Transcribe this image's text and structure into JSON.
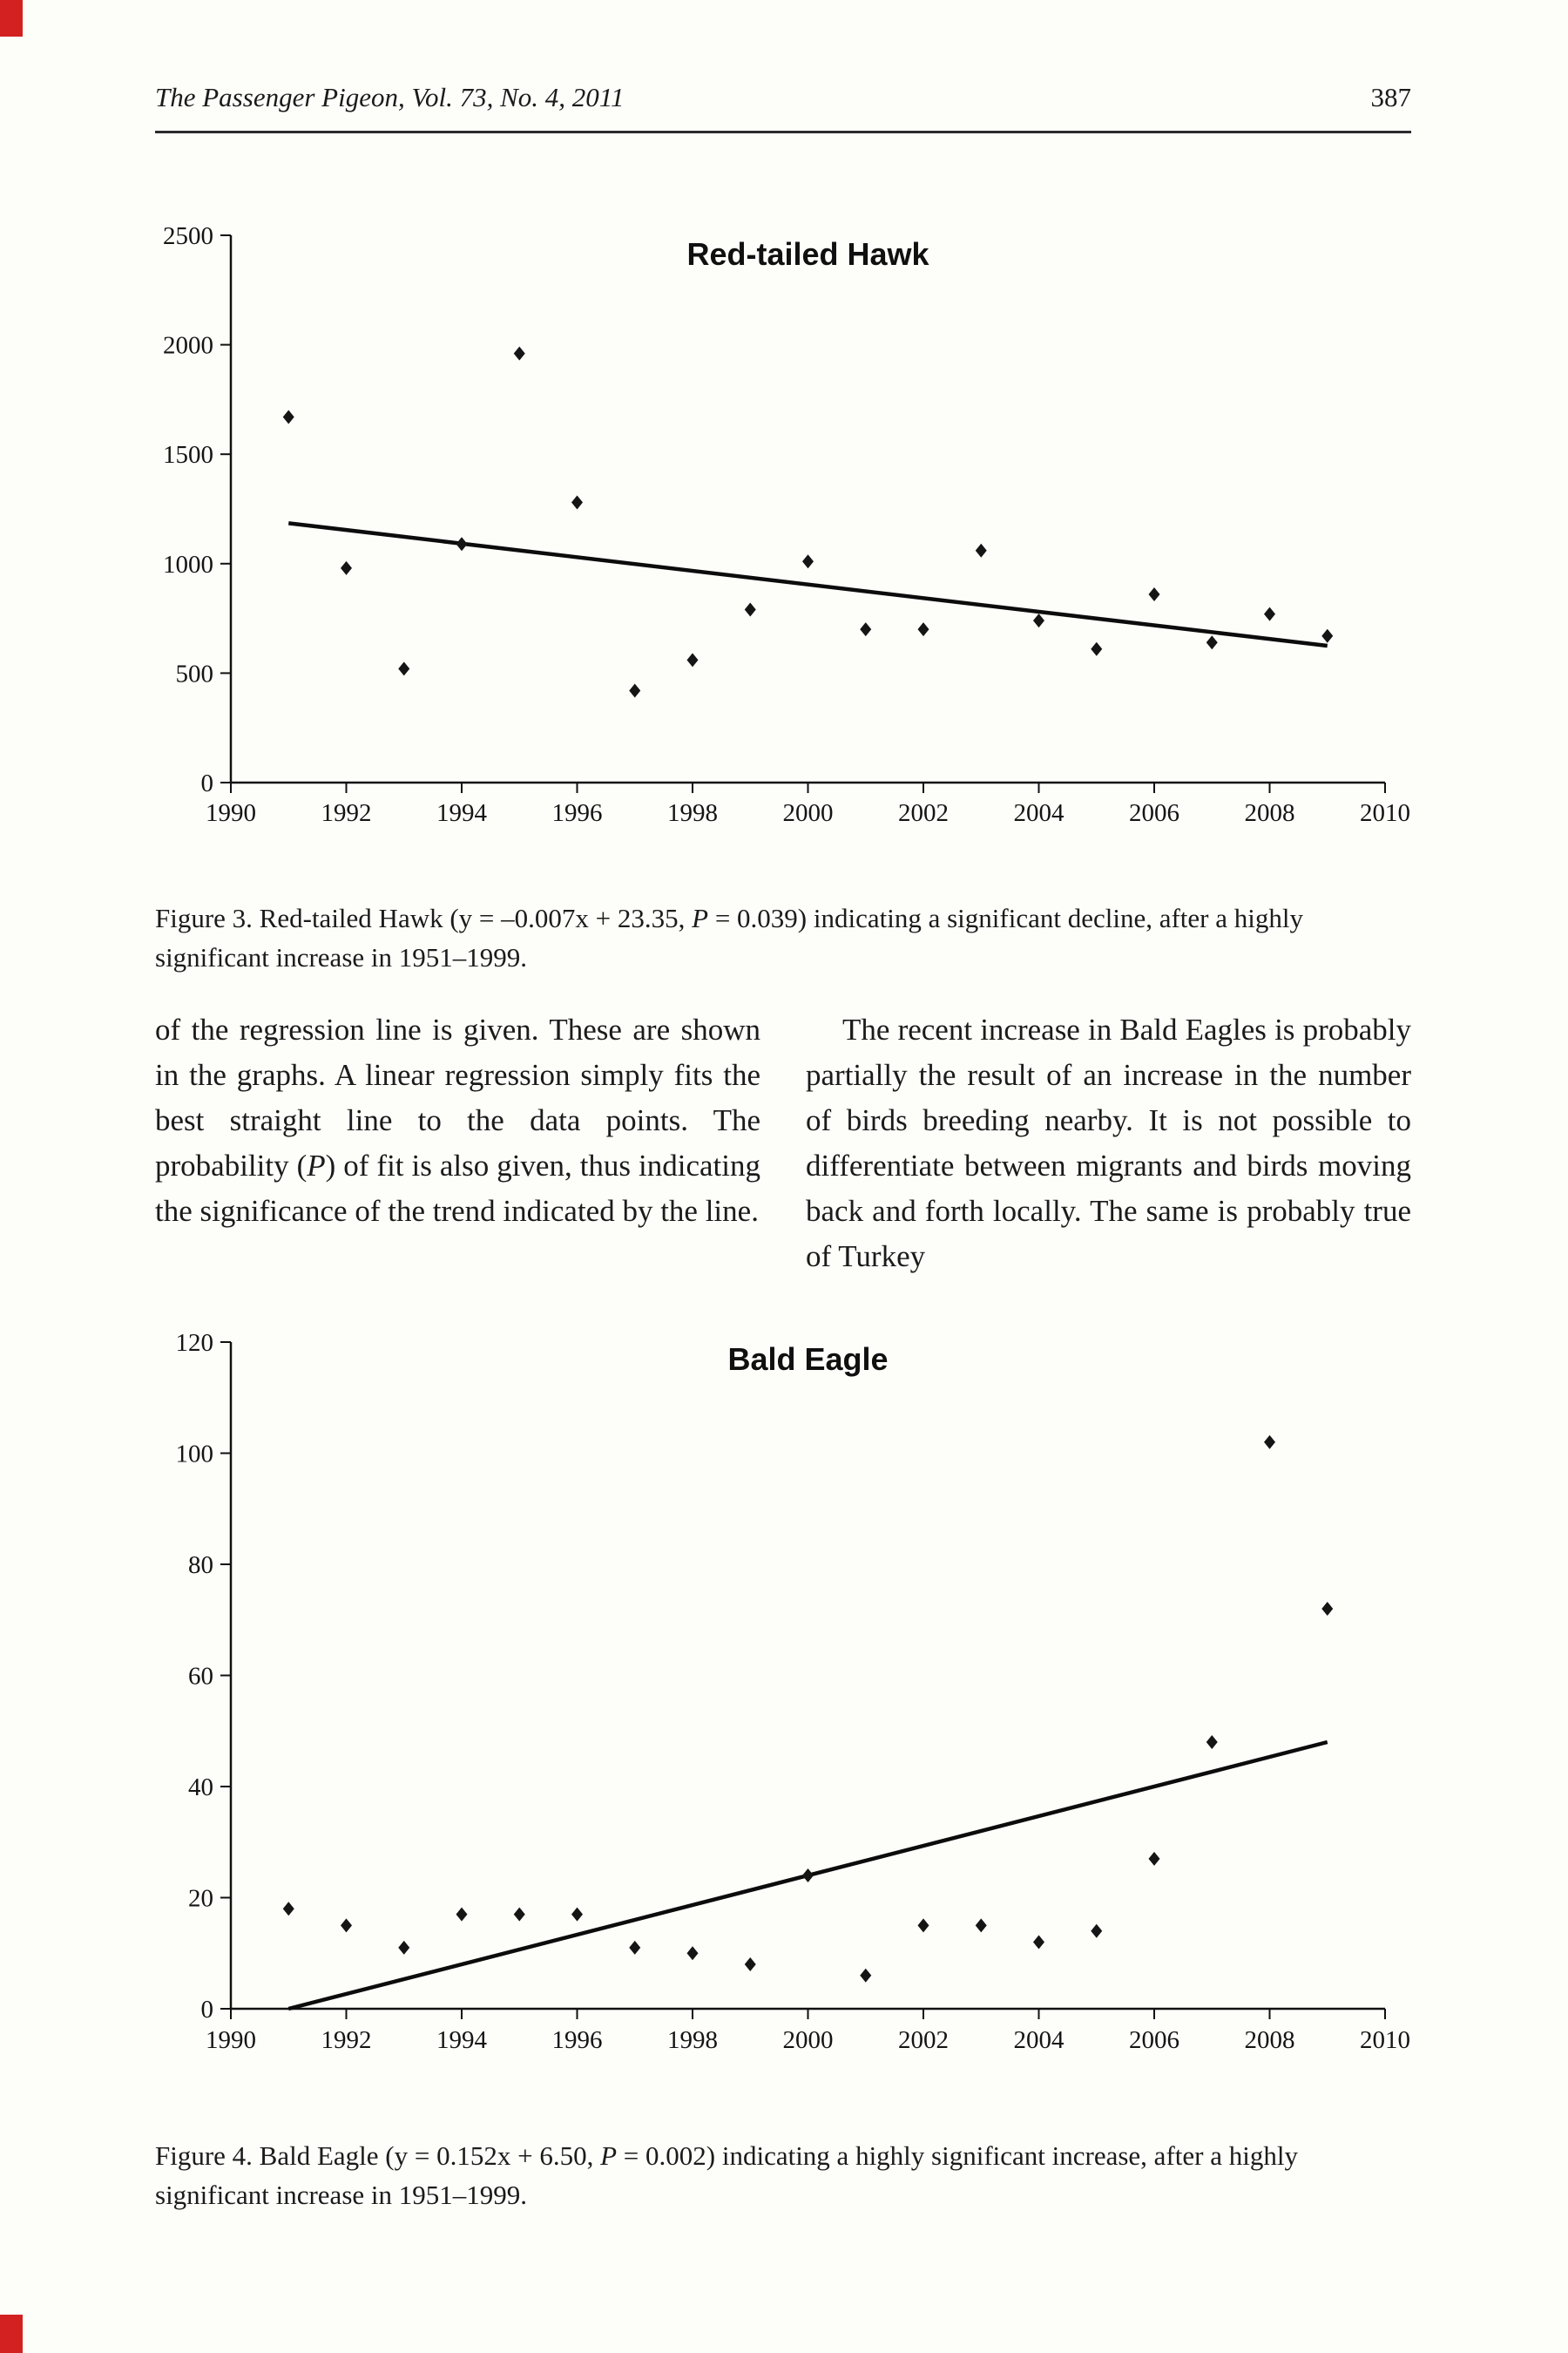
{
  "header": {
    "journal_line": "The Passenger Pigeon, Vol. 73, No. 4, 2011",
    "page_number": "387"
  },
  "figure3_caption": {
    "part1": "Figure 3. Red-tailed Hawk (y = –0.007x + 23.35, ",
    "italic": "P",
    "part2": " = 0.039) indicating a significant decline, after a highly significant increase in 1951–1999."
  },
  "body": {
    "left": {
      "part1": "of the regression line is given. These are shown in the graphs. A linear regression simply fits the best straight line to the data points. The probability (",
      "italic": "P",
      "part2": ") of fit is also given, thus indicating the significance of the trend indicated by the line."
    },
    "right": "The recent increase in Bald Eagles is probably partially the result of an increase in the number of birds breeding nearby. It is not possible to differentiate between migrants and birds moving back and forth locally. The same is probably true of Turkey"
  },
  "figure4_caption": {
    "part1": "Figure 4. Bald Eagle (y = 0.152x + 6.50, ",
    "italic": "P",
    "part2": " = 0.002) indicating a highly significant increase, after a highly significant increase in 1951–1999."
  },
  "chart_data": [
    {
      "type": "scatter",
      "title": "Red-tailed Hawk",
      "marker": "diamond",
      "marker_color": "#151515",
      "grid": false,
      "legend": null,
      "xlabel": "",
      "ylabel": "",
      "xlim": [
        1990,
        2010
      ],
      "ylim": [
        0,
        2500
      ],
      "xticks": [
        1990,
        1992,
        1994,
        1996,
        1998,
        2000,
        2002,
        2004,
        2006,
        2008,
        2010
      ],
      "yticks": [
        0,
        500,
        1000,
        1500,
        2000,
        2500
      ],
      "x": [
        1991,
        1992,
        1993,
        1994,
        1995,
        1996,
        1997,
        1998,
        1999,
        2000,
        2001,
        2002,
        2003,
        2004,
        2005,
        2006,
        2007,
        2008,
        2009
      ],
      "y": [
        1670,
        980,
        520,
        1090,
        1960,
        1280,
        420,
        560,
        790,
        1010,
        700,
        700,
        1060,
        740,
        610,
        860,
        640,
        770,
        670
      ],
      "trend": {
        "x1": 1991,
        "y1": 1185,
        "x2": 2009,
        "y2": 625
      },
      "regression": {
        "equation": "y = –0.007x + 23.35",
        "P": "0.039"
      }
    },
    {
      "type": "scatter",
      "title": "Bald Eagle",
      "marker": "diamond",
      "marker_color": "#151515",
      "grid": false,
      "legend": null,
      "xlabel": "",
      "ylabel": "",
      "xlim": [
        1990,
        2010
      ],
      "ylim": [
        0,
        120
      ],
      "xticks": [
        1990,
        1992,
        1994,
        1996,
        1998,
        2000,
        2002,
        2004,
        2006,
        2008,
        2010
      ],
      "yticks": [
        0,
        20,
        40,
        60,
        80,
        100,
        120
      ],
      "x": [
        1991,
        1992,
        1993,
        1994,
        1995,
        1996,
        1997,
        1998,
        1999,
        2000,
        2001,
        2002,
        2003,
        2004,
        2005,
        2006,
        2007,
        2008,
        2009
      ],
      "y": [
        18,
        15,
        11,
        17,
        17,
        17,
        11,
        10,
        8,
        24,
        6,
        15,
        15,
        12,
        14,
        27,
        48,
        102,
        72
      ],
      "trend": {
        "x1": 1991,
        "y1": 0,
        "x2": 2009,
        "y2": 48
      },
      "regression": {
        "equation": "y = 0.152x + 6.50",
        "P": "0.002"
      }
    }
  ]
}
